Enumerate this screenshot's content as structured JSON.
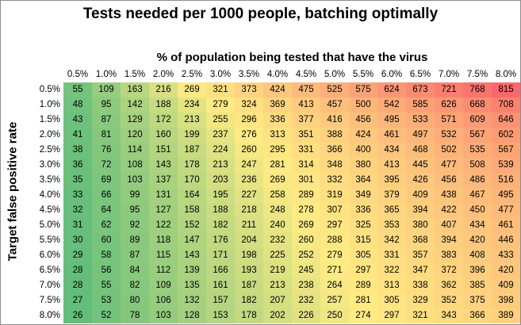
{
  "chart_data": {
    "type": "heatmap",
    "title": "Tests needed per 1000 people, batching optimally",
    "xlabel": "% of population being tested that have the virus",
    "ylabel": "Target false positive rate",
    "x_labels": [
      "0.5%",
      "1.0%",
      "1.5%",
      "2.0%",
      "2.5%",
      "3.0%",
      "3.5%",
      "4.0%",
      "4.5%",
      "5.0%",
      "5.5%",
      "6.0%",
      "6.5%",
      "7.0%",
      "7.5%",
      "8.0%"
    ],
    "y_labels": [
      "0.5%",
      "1.0%",
      "1.5%",
      "2.0%",
      "2.5%",
      "3.0%",
      "3.5%",
      "4.0%",
      "4.5%",
      "5.0%",
      "5.5%",
      "6.0%",
      "6.5%",
      "7.0%",
      "7.5%",
      "8.0%"
    ],
    "values": [
      [
        55,
        109,
        163,
        216,
        269,
        321,
        373,
        424,
        475,
        525,
        575,
        624,
        673,
        721,
        768,
        815
      ],
      [
        48,
        95,
        142,
        188,
        234,
        279,
        324,
        369,
        413,
        457,
        500,
        542,
        585,
        626,
        668,
        708
      ],
      [
        43,
        87,
        129,
        172,
        213,
        255,
        296,
        336,
        377,
        416,
        456,
        495,
        533,
        571,
        609,
        646
      ],
      [
        41,
        81,
        120,
        160,
        199,
        237,
        276,
        313,
        351,
        388,
        424,
        461,
        497,
        532,
        567,
        602
      ],
      [
        38,
        76,
        114,
        151,
        187,
        224,
        260,
        295,
        331,
        366,
        400,
        434,
        468,
        502,
        535,
        567
      ],
      [
        36,
        72,
        108,
        143,
        178,
        213,
        247,
        281,
        314,
        348,
        380,
        413,
        445,
        477,
        508,
        539
      ],
      [
        35,
        69,
        103,
        137,
        170,
        203,
        236,
        269,
        301,
        332,
        364,
        395,
        426,
        456,
        486,
        516
      ],
      [
        33,
        66,
        99,
        131,
        164,
        195,
        227,
        258,
        289,
        319,
        349,
        379,
        409,
        438,
        467,
        495
      ],
      [
        32,
        64,
        95,
        127,
        158,
        188,
        218,
        248,
        278,
        307,
        336,
        365,
        394,
        422,
        450,
        477
      ],
      [
        31,
        62,
        92,
        122,
        152,
        182,
        211,
        240,
        269,
        297,
        325,
        353,
        380,
        407,
        434,
        461
      ],
      [
        30,
        60,
        89,
        118,
        147,
        176,
        204,
        232,
        260,
        288,
        315,
        342,
        368,
        394,
        420,
        446
      ],
      [
        29,
        58,
        87,
        115,
        143,
        171,
        198,
        225,
        252,
        279,
        305,
        331,
        357,
        383,
        408,
        433
      ],
      [
        28,
        56,
        84,
        112,
        139,
        166,
        193,
        219,
        245,
        271,
        297,
        322,
        347,
        372,
        396,
        420
      ],
      [
        28,
        55,
        82,
        109,
        135,
        161,
        187,
        213,
        238,
        264,
        289,
        313,
        338,
        362,
        385,
        409
      ],
      [
        27,
        53,
        80,
        106,
        132,
        157,
        182,
        207,
        232,
        257,
        281,
        305,
        329,
        352,
        375,
        398
      ],
      [
        26,
        52,
        78,
        103,
        128,
        153,
        178,
        202,
        226,
        250,
        274,
        297,
        321,
        343,
        366,
        389
      ]
    ],
    "color_scale": {
      "low": "#63be7b",
      "mid": "#ffeb84",
      "high": "#f8696b"
    },
    "grid": false,
    "legend": "none"
  }
}
